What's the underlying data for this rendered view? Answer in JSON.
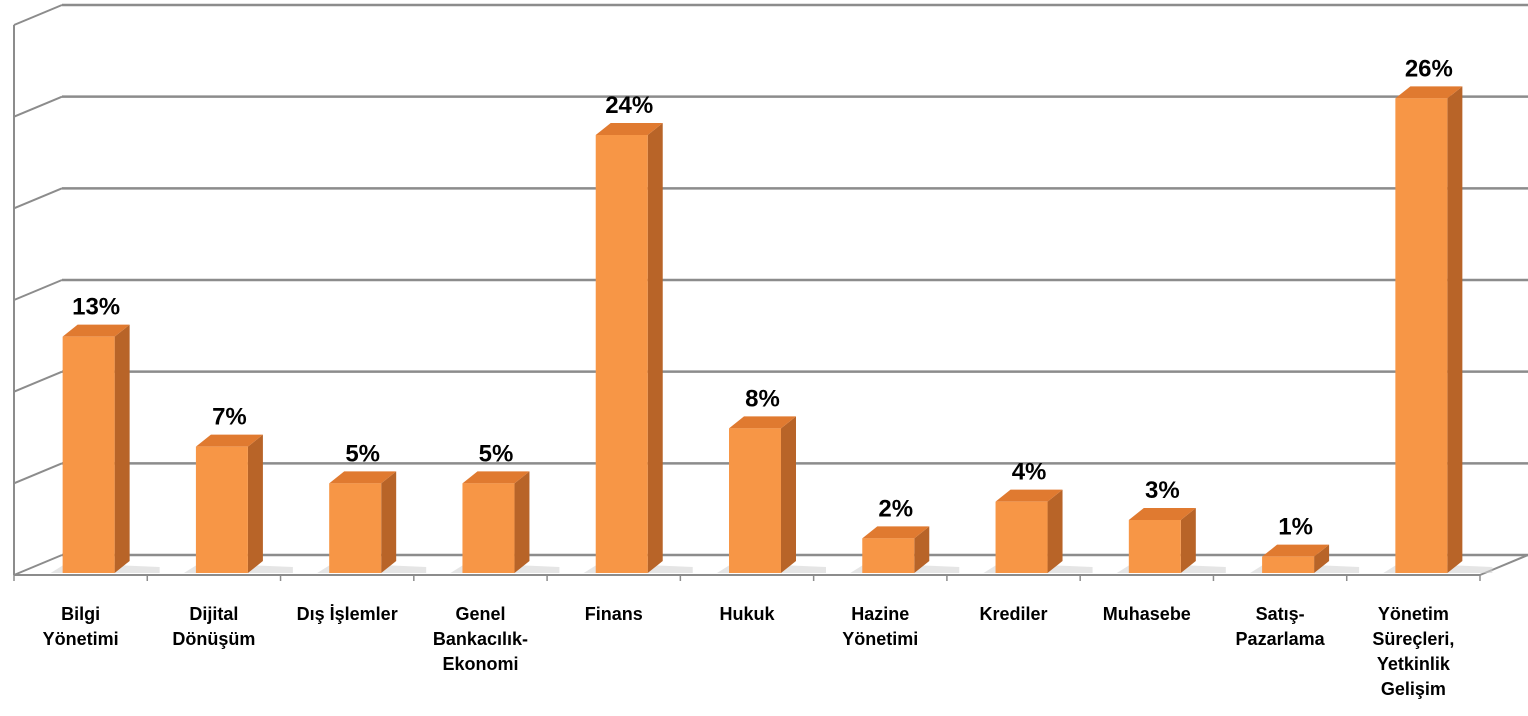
{
  "chart_data": {
    "type": "bar",
    "style": "3d-column",
    "categories": [
      [
        "Bilgi",
        "Yönetimi"
      ],
      [
        "Dijital",
        "Dönüşüm"
      ],
      [
        "Dış İşlemler"
      ],
      [
        "Genel",
        "Bankacılık-",
        "Ekonomi"
      ],
      [
        "Finans"
      ],
      [
        "Hukuk"
      ],
      [
        "Hazine",
        "Yönetimi"
      ],
      [
        "Krediler"
      ],
      [
        "Muhasebe"
      ],
      [
        "Satış-",
        "Pazarlama"
      ],
      [
        "Yönetim",
        "Süreçleri,",
        "Yetkinlik",
        "Gelişim"
      ]
    ],
    "values": [
      13,
      7,
      5,
      5,
      24,
      8,
      2,
      4,
      3,
      1,
      26
    ],
    "data_labels": [
      "13%",
      "7%",
      "5%",
      "5%",
      "24%",
      "8%",
      "2%",
      "4%",
      "3%",
      "1%",
      "26%"
    ],
    "ylim": [
      0,
      30
    ],
    "grid": true,
    "legend": "none",
    "colors": {
      "bar_front": "#F79646",
      "bar_side": "#B86428",
      "bar_top": "#E07A30",
      "gridline": "#8C8C8C",
      "floor_shadow": "#D0D0D0"
    }
  }
}
